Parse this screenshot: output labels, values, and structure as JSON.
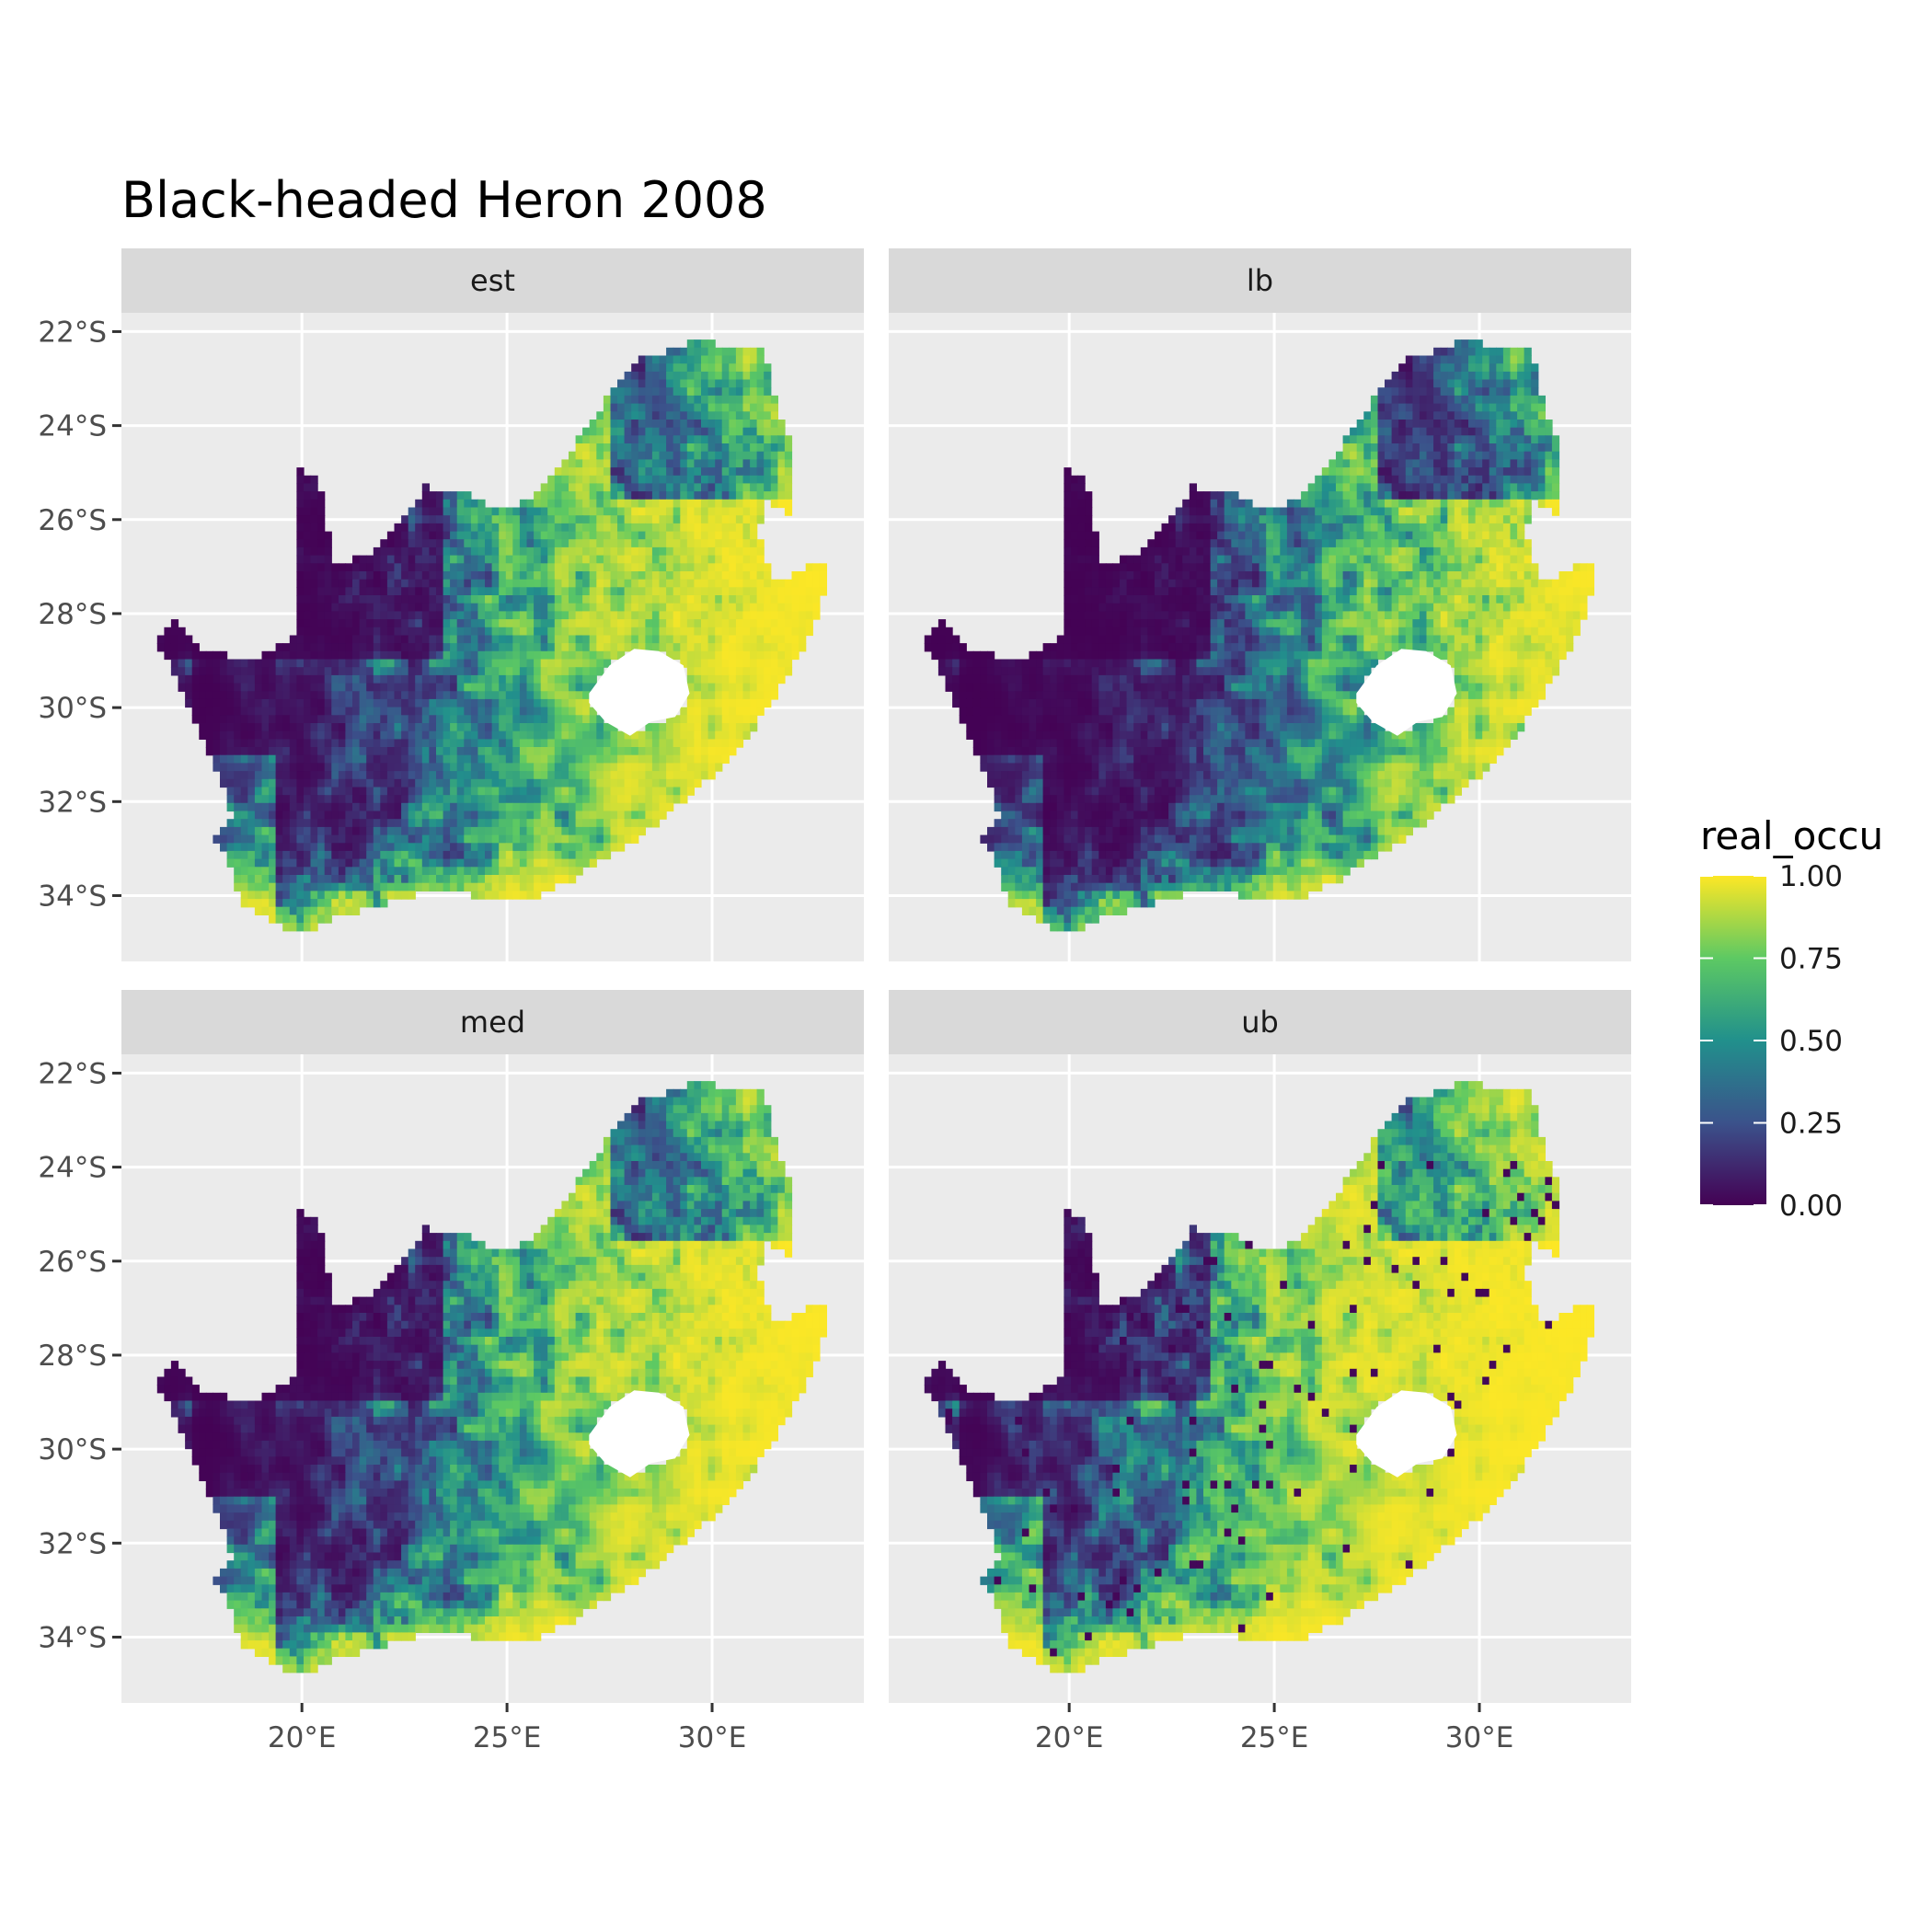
{
  "title": "Black-headed Heron 2008",
  "facets": [
    "est",
    "lb",
    "med",
    "ub"
  ],
  "axes": {
    "y_ticks": [
      {
        "value": -22,
        "label": "22°S"
      },
      {
        "value": -24,
        "label": "24°S"
      },
      {
        "value": -26,
        "label": "26°S"
      },
      {
        "value": -28,
        "label": "28°S"
      },
      {
        "value": -30,
        "label": "30°S"
      },
      {
        "value": -32,
        "label": "32°S"
      },
      {
        "value": -34,
        "label": "34°S"
      }
    ],
    "x_ticks": [
      {
        "value": 20,
        "label": "20°E"
      },
      {
        "value": 25,
        "label": "25°E"
      },
      {
        "value": 30,
        "label": "30°E"
      }
    ],
    "xlim": [
      15.6,
      33.7
    ],
    "ylim": [
      -35.4,
      -21.6
    ]
  },
  "legend": {
    "title": "real_occu",
    "breaks": [
      {
        "value": 1.0,
        "label": "1.00"
      },
      {
        "value": 0.75,
        "label": "0.75"
      },
      {
        "value": 0.5,
        "label": "0.50"
      },
      {
        "value": 0.25,
        "label": "0.25"
      },
      {
        "value": 0.0,
        "label": "0.00"
      }
    ],
    "palette": "viridis",
    "colors": [
      "#440154",
      "#3b528b",
      "#21908c",
      "#5dc963",
      "#fde725"
    ]
  },
  "chart_data": {
    "type": "heatmap",
    "title": "Black-headed Heron 2008",
    "facet_labels": [
      "est",
      "lb",
      "med",
      "ub"
    ],
    "fill_variable": "real_occu",
    "fill_range": [
      0,
      1
    ],
    "xlim": [
      15.6,
      33.7
    ],
    "ylim": [
      -35.4,
      -21.6
    ],
    "pattern": "low occupancy in west/north-west and far north, high occupancy (near 1) in east, south-east coast and south-west Cape"
  }
}
